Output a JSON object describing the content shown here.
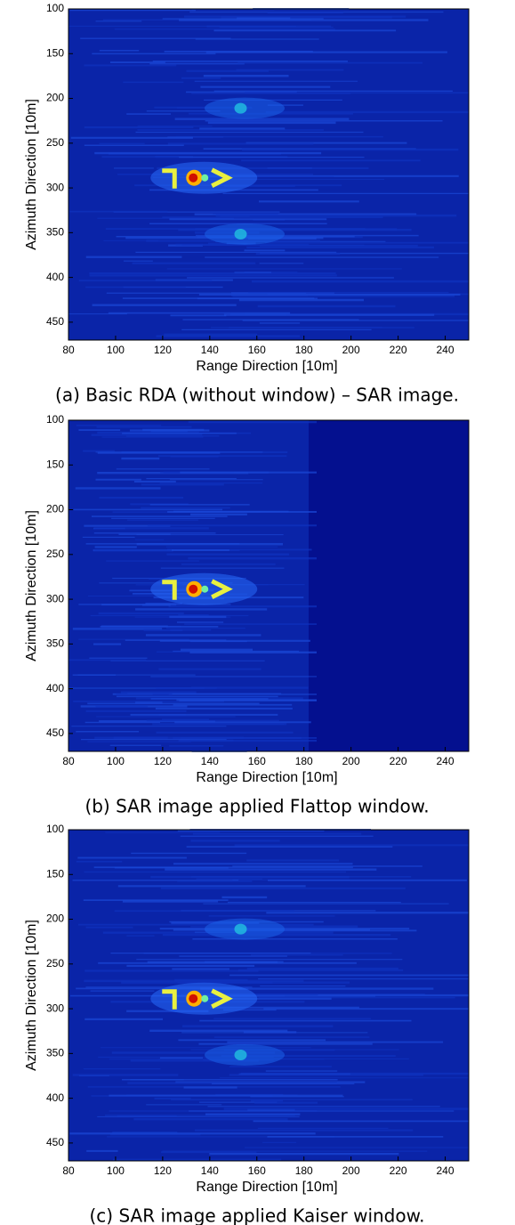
{
  "chart_data": [
    {
      "type": "heatmap",
      "caption": "(a) Basic RDA (without window) – SAR image.",
      "xlabel": "Range Direction [10m]",
      "ylabel": "Azimuth Direction [10m]",
      "xlim": [
        80,
        250
      ],
      "ylim": [
        100,
        470
      ],
      "y_inverted": true,
      "xticks": [
        80,
        100,
        120,
        140,
        160,
        180,
        200,
        220,
        240
      ],
      "yticks": [
        100,
        150,
        200,
        250,
        300,
        350,
        400,
        450
      ]
    },
    {
      "type": "heatmap",
      "caption": "(b) SAR image applied Flattop window.",
      "xlabel": "Range Direction [10m]",
      "ylabel": "Azimuth Direction [10m]",
      "xlim": [
        80,
        250
      ],
      "ylim": [
        100,
        470
      ],
      "y_inverted": true,
      "xticks": [
        80,
        100,
        120,
        140,
        160,
        180,
        200,
        220,
        240
      ],
      "yticks": [
        100,
        150,
        200,
        250,
        300,
        350,
        400,
        450
      ]
    },
    {
      "type": "heatmap",
      "caption": "(c) SAR image applied Kaiser window.",
      "xlabel": "Range Direction [10m]",
      "ylabel": "Azimuth Direction [10m]",
      "xlim": [
        80,
        250
      ],
      "ylim": [
        100,
        470
      ],
      "y_inverted": true,
      "xticks": [
        80,
        100,
        120,
        140,
        160,
        180,
        200,
        220,
        240
      ],
      "yticks": [
        100,
        150,
        200,
        250,
        300,
        350,
        400,
        450
      ]
    }
  ]
}
